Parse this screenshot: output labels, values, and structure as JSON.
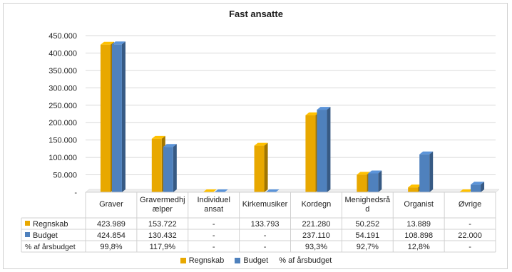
{
  "chart_data": {
    "type": "bar",
    "title": "Fast ansatte",
    "categories": [
      "Graver",
      "Gravermedhjælper",
      "Individuel ansat",
      "Kirkemusiker",
      "Kordegn",
      "Menighedsråd",
      "Organist",
      "Øvrige"
    ],
    "category_labels": [
      [
        "Graver"
      ],
      [
        "Gravermedhj",
        "ælper"
      ],
      [
        "Individuel",
        "ansat"
      ],
      [
        "Kirkemusiker"
      ],
      [
        "Kordegn"
      ],
      [
        "Menighedsrå",
        "d"
      ],
      [
        "Organist"
      ],
      [
        "Øvrige"
      ]
    ],
    "ylim": [
      0,
      450000
    ],
    "yticks": [
      0,
      50000,
      100000,
      150000,
      200000,
      250000,
      300000,
      350000,
      400000,
      450000
    ],
    "ytick_labels": [
      "-",
      "50.000",
      "100.000",
      "150.000",
      "200.000",
      "250.000",
      "300.000",
      "350.000",
      "400.000",
      "450.000"
    ],
    "series": [
      {
        "name": "Regnskab",
        "color": "#E8A800",
        "values": [
          423989,
          153722,
          0,
          133793,
          221280,
          50252,
          13889,
          0
        ],
        "labels": [
          "423.989",
          "153.722",
          "-",
          "133.793",
          "221.280",
          "50.252",
          "13.889",
          "-"
        ]
      },
      {
        "name": "Budget",
        "color": "#4F81BD",
        "values": [
          424854,
          130432,
          0,
          0,
          237110,
          54191,
          108898,
          22000
        ],
        "labels": [
          "424.854",
          "130.432",
          "-",
          "-",
          "237.110",
          "54.191",
          "108.898",
          "22.000"
        ]
      }
    ],
    "table_rows": [
      {
        "name": "% af årsbudget",
        "labels": [
          "99,8%",
          "117,9%",
          "-",
          "-",
          "93,3%",
          "92,7%",
          "12,8%",
          "-"
        ]
      }
    ],
    "legend": [
      "Regnskab",
      "Budget",
      "% af årsbudget"
    ],
    "legend_position": "bottom",
    "grid": true
  }
}
